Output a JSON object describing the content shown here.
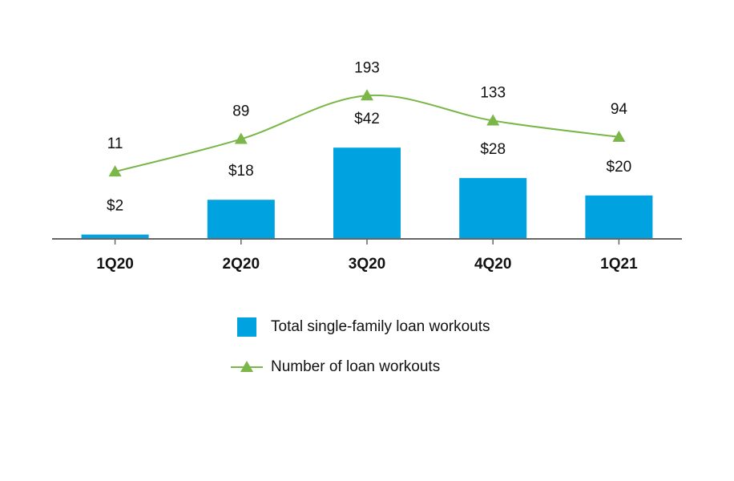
{
  "chart_data": {
    "type": "bar",
    "categories": [
      "1Q20",
      "2Q20",
      "3Q20",
      "4Q20",
      "1Q21"
    ],
    "series": [
      {
        "name": "Total single-family loan workouts",
        "type": "bar",
        "color": "#00a3e0",
        "values": [
          2,
          18,
          42,
          28,
          20
        ],
        "value_labels": [
          "$2",
          "$18",
          "$42",
          "$28",
          "$20"
        ]
      },
      {
        "name": "Number of loan workouts",
        "type": "line",
        "axis": "y2",
        "color": "#7ab648",
        "values": [
          11,
          89,
          193,
          133,
          94
        ]
      }
    ],
    "ylim": [
      0,
      100
    ],
    "y2lim": [
      -150,
      370
    ]
  }
}
